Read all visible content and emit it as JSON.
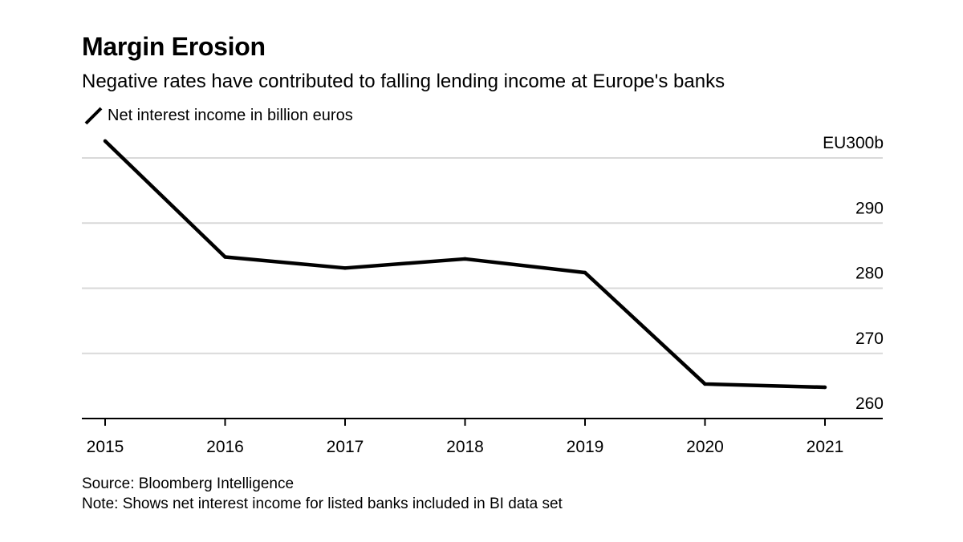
{
  "title": "Margin Erosion",
  "subtitle": "Negative rates have contributed to falling lending income at Europe's banks",
  "source": "Source: Bloomberg Intelligence",
  "note": "Note: Shows net interest income for listed banks included in BI data set",
  "colors": {
    "line": "#000000",
    "grid": "#d9d9d9",
    "axis": "#000000",
    "text": "#000000"
  },
  "chart_data": {
    "type": "line",
    "x": [
      "2015",
      "2016",
      "2017",
      "2018",
      "2019",
      "2020",
      "2021"
    ],
    "series": [
      {
        "name": "Net interest income in billion euros",
        "values": [
          302.6,
          284.8,
          283.1,
          284.5,
          282.4,
          265.3,
          264.8
        ]
      }
    ],
    "ylim": [
      260,
      300
    ],
    "yticks": [
      260,
      270,
      280,
      290,
      300
    ],
    "ytick_labels": [
      "260",
      "270",
      "280",
      "290",
      "EU300b"
    ],
    "y_axis_position": "right",
    "grid": true,
    "legend_position": "top-left"
  }
}
